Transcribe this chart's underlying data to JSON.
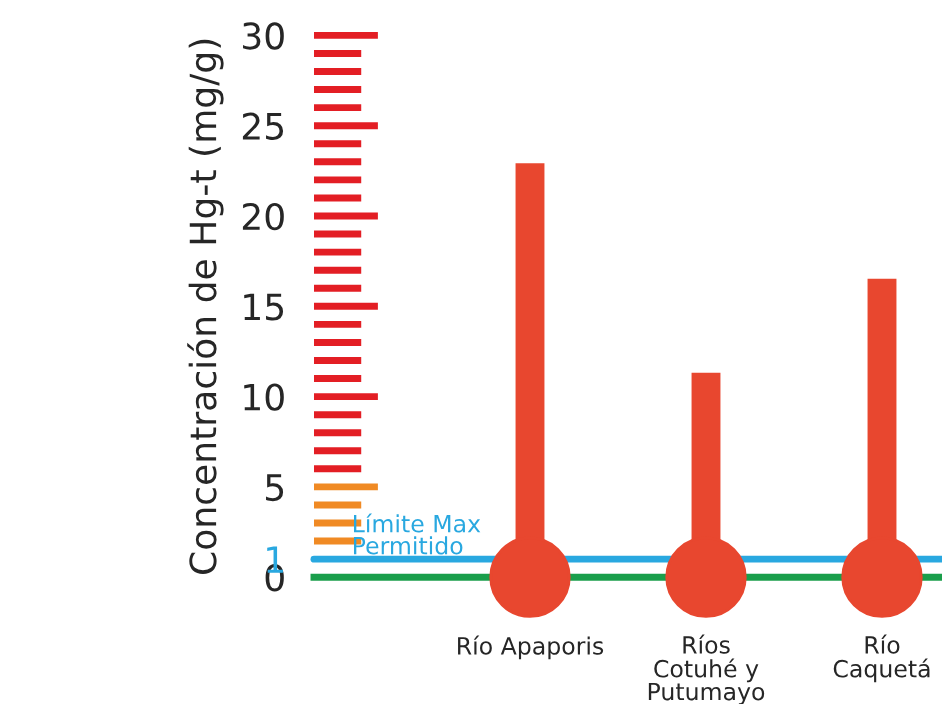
{
  "chart_data": {
    "type": "bar",
    "ylabel": "Concentración de Hg-t (mg/g)",
    "categories": [
      "Río Apaporis",
      "Ríos\nCotuhé y\nPutumayo",
      "Río\nCaquetá"
    ],
    "values": [
      23.0,
      11.4,
      16.6
    ],
    "color": "#e8472f",
    "ylim": [
      0,
      30
    ],
    "yticks": [
      0,
      {
        "value": 1,
        "label": "1"
      },
      5,
      10,
      15,
      20,
      25,
      30
    ],
    "ref_lines": [
      {
        "axis": "y",
        "value": 1,
        "label": "Límite Max\nPermitido",
        "color": "#29a8e0"
      }
    ],
    "grid": false,
    "legend": false
  }
}
